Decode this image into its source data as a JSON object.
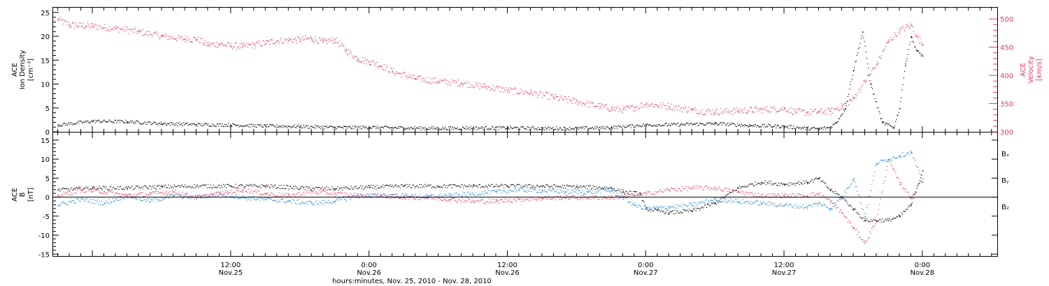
{
  "colors": {
    "density": "#000000",
    "velocity": "#e8365f",
    "bx": "#000000",
    "by": "#1e82e0",
    "bz": "#e8365f"
  },
  "x_axis": {
    "title": "hours:minutes, Nov. 25, 2010 - Nov. 28, 2010",
    "ticks": [
      {
        "hours": 12,
        "time": "12:00",
        "date": "Nov.25"
      },
      {
        "hours": 24,
        "time": "0:00",
        "date": "Nov.26"
      },
      {
        "hours": 36,
        "time": "12:00",
        "date": "Nov.26"
      },
      {
        "hours": 48,
        "time": "0:00",
        "date": "Nov.27"
      },
      {
        "hours": 60,
        "time": "12:00",
        "date": "Nov.27"
      },
      {
        "hours": 72,
        "time": "0:00",
        "date": "Nov.28"
      }
    ]
  },
  "chart_data": [
    {
      "type": "scatter",
      "panel": "top",
      "ylabel_left": [
        "ACE",
        "Ion Density",
        "[cm⁻³]"
      ],
      "ylabel_right": [
        "ACE",
        "Velocity",
        "[km/s]"
      ],
      "ylim_left": [
        0,
        26
      ],
      "ylim_right": [
        300,
        520
      ],
      "yticks_left": [
        0,
        5,
        10,
        15,
        20,
        25
      ],
      "yticks_right": [
        300,
        350,
        400,
        450,
        500
      ],
      "xlim_hours": [
        -3.4,
        78.5
      ],
      "series": [
        {
          "axis": "left",
          "x_hours": [
            -3,
            0,
            3,
            6,
            9,
            12,
            15,
            18,
            21,
            24,
            27,
            30,
            33,
            36,
            39,
            42,
            45,
            48,
            51,
            54,
            57,
            60,
            62,
            63,
            64,
            64.5,
            65.3,
            66,
            66.8,
            67.5,
            68.5,
            69.5,
            70,
            70.5,
            71,
            71.5,
            72
          ],
          "values": [
            1.5,
            2.3,
            2.2,
            1.8,
            1.6,
            1.5,
            1.3,
            1.2,
            1.0,
            1.0,
            0.9,
            0.8,
            0.9,
            0.9,
            0.8,
            0.8,
            1.0,
            1.5,
            1.6,
            1.8,
            1.4,
            1.2,
            0.8,
            0.7,
            1.0,
            2.0,
            5.0,
            13.0,
            21.0,
            10.0,
            2.0,
            1.0,
            5.0,
            14.0,
            20.0,
            17.0,
            16.0
          ]
        },
        {
          "axis": "right",
          "x_hours": [
            -3,
            -2,
            0,
            2,
            4,
            6,
            8,
            9,
            10,
            11,
            12,
            13,
            14,
            15,
            16,
            17,
            18,
            19,
            20,
            21,
            22,
            23,
            24,
            25,
            26,
            28,
            30,
            32,
            34,
            36,
            38,
            40,
            42,
            44,
            45,
            46,
            47,
            48,
            50,
            52,
            54,
            56,
            58,
            60,
            61,
            62,
            63,
            64,
            65,
            66,
            67,
            68,
            69,
            70,
            71,
            71.5,
            72
          ],
          "values": [
            500,
            490,
            488,
            484,
            478,
            470,
            465,
            465,
            455,
            456,
            453,
            452,
            455,
            458,
            462,
            463,
            464,
            466,
            460,
            464,
            445,
            430,
            425,
            418,
            408,
            395,
            390,
            387,
            381,
            374,
            370,
            362,
            354,
            346,
            342,
            340,
            344,
            350,
            346,
            339,
            336,
            338,
            340,
            342,
            336,
            335,
            336,
            337,
            346,
            360,
            390,
            420,
            460,
            480,
            490,
            470,
            455
          ]
        }
      ]
    },
    {
      "type": "scatter",
      "panel": "bottom",
      "ylabel_left": [
        "ACE",
        "B",
        "[nT]"
      ],
      "ylim": [
        -15.5,
        17
      ],
      "yticks": [
        -15,
        -10,
        -5,
        0,
        5,
        10,
        15
      ],
      "xlim_hours": [
        -3.4,
        78.5
      ],
      "reference_line": 0,
      "legend": [
        "Bₓ",
        "Bᵧ",
        "B₂"
      ],
      "series": [
        {
          "name": "Bₓ",
          "x_hours": [
            -3,
            0,
            3,
            6,
            9,
            12,
            15,
            18,
            21,
            24,
            27,
            30,
            33,
            36,
            39,
            42,
            45,
            46,
            47.5,
            48,
            49,
            50,
            52,
            54,
            56,
            58,
            60,
            62,
            63,
            64,
            65,
            66,
            67,
            68,
            69,
            70,
            71,
            72
          ],
          "values": [
            2.0,
            2.5,
            2.5,
            2.8,
            3.0,
            3.0,
            3.0,
            2.5,
            2.3,
            2.7,
            3.0,
            3.0,
            3.0,
            3.0,
            3.0,
            2.8,
            2.5,
            1.5,
            1.0,
            -3.0,
            -3.5,
            -4.0,
            -3.5,
            -1.5,
            2.5,
            4.0,
            3.5,
            4.0,
            5.0,
            2.0,
            0.0,
            -3.0,
            -6.0,
            -6.0,
            -6.0,
            -5.0,
            -2.0,
            7.0
          ]
        },
        {
          "name": "Bᵧ",
          "x_hours": [
            -3,
            -1,
            1,
            3,
            5,
            7,
            9,
            11,
            13,
            15,
            17,
            19,
            21,
            23,
            25,
            27,
            29,
            31,
            33,
            35,
            37,
            39,
            41,
            43,
            45,
            46,
            47,
            48,
            50,
            52,
            54,
            56,
            58,
            60,
            62,
            63,
            64,
            65,
            66,
            67,
            68,
            69,
            70,
            71,
            72
          ],
          "values": [
            -2.0,
            -0.5,
            -1.5,
            0.5,
            -1.0,
            0.5,
            0.0,
            1.0,
            0.0,
            -0.5,
            -1.0,
            -1.5,
            -1.0,
            0.5,
            0.5,
            0.5,
            0.3,
            0.5,
            1.0,
            1.5,
            2.0,
            1.8,
            1.5,
            1.5,
            1.8,
            0.0,
            -2.0,
            -3.0,
            -2.5,
            -2.0,
            -0.5,
            -1.0,
            -1.5,
            -2.0,
            -2.5,
            -1.5,
            -3.0,
            0.0,
            5.0,
            -5.0,
            9.0,
            10.0,
            11.0,
            12.0,
            4.0
          ]
        },
        {
          "name": "B₂",
          "x_hours": [
            -3,
            -1,
            1,
            3,
            5,
            7,
            9,
            11,
            13,
            15,
            17,
            19,
            21,
            23,
            25,
            27,
            29,
            31,
            33,
            35,
            37,
            39,
            41,
            43,
            45,
            47,
            48,
            50,
            52,
            54,
            56,
            58,
            60,
            62,
            63,
            64,
            65,
            66,
            67,
            68,
            69,
            70,
            71,
            72
          ],
          "values": [
            0.5,
            2.0,
            1.5,
            0.5,
            1.0,
            1.5,
            0.0,
            1.0,
            2.0,
            1.0,
            0.5,
            1.5,
            1.0,
            0.5,
            0.5,
            0.0,
            0.0,
            -0.5,
            -1.0,
            -1.0,
            -0.5,
            -0.2,
            0.0,
            0.0,
            0.0,
            0.5,
            1.0,
            2.0,
            2.5,
            2.5,
            1.5,
            0.5,
            0.5,
            0.5,
            1.0,
            -1.0,
            -4.0,
            -8.0,
            -12.0,
            -6.0,
            10.0,
            4.0,
            0.0,
            5.0
          ]
        }
      ]
    }
  ]
}
